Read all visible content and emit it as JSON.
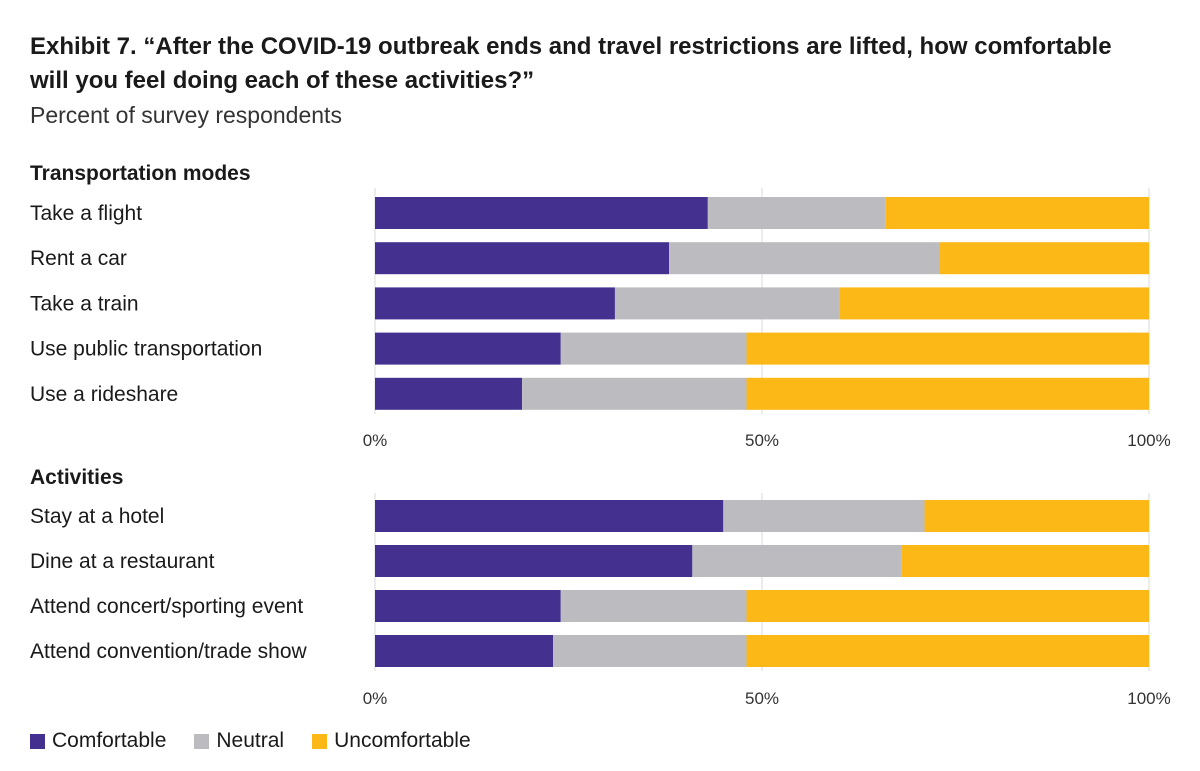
{
  "title": "Exhibit 7. “After the COVID-19 outbreak ends and travel restrictions are lifted, how comfortable will you feel doing each of these activities?”",
  "subtitle": "Percent of survey respondents",
  "colors": {
    "comfortable": "#44318f",
    "neutral": "#bcbcc0",
    "uncomfortable": "#fbb817",
    "grid": "#d9d9d9"
  },
  "legend": [
    {
      "label": "Comfortable",
      "key": "comfortable"
    },
    {
      "label": "Neutral",
      "key": "neutral"
    },
    {
      "label": "Uncomfortable",
      "key": "uncomfortable"
    }
  ],
  "chart_data": [
    {
      "type": "bar",
      "stacked": true,
      "orientation": "horizontal",
      "title": "Transportation modes",
      "categories": [
        "Take a flight",
        "Rent a car",
        "Take a train",
        "Use public transportation",
        "Use a rideshare"
      ],
      "series": [
        {
          "name": "Comfortable",
          "values": [
            43,
            38,
            31,
            24,
            19
          ]
        },
        {
          "name": "Neutral",
          "values": [
            23,
            35,
            29,
            24,
            29
          ]
        },
        {
          "name": "Uncomfortable",
          "values": [
            34,
            27,
            40,
            52,
            52
          ]
        }
      ],
      "xlim": [
        0,
        100
      ],
      "xticks": [
        "0%",
        "50%",
        "100%"
      ],
      "grid": true
    },
    {
      "type": "bar",
      "stacked": true,
      "orientation": "horizontal",
      "title": "Activities",
      "categories": [
        "Stay at a hotel",
        "Dine at a restaurant",
        "Attend concert/sporting event",
        "Attend convention/trade show"
      ],
      "series": [
        {
          "name": "Comfortable",
          "values": [
            45,
            41,
            24,
            23
          ]
        },
        {
          "name": "Neutral",
          "values": [
            26,
            27,
            24,
            25
          ]
        },
        {
          "name": "Uncomfortable",
          "values": [
            29,
            32,
            52,
            52
          ]
        }
      ],
      "xlim": [
        0,
        100
      ],
      "xticks": [
        "0%",
        "50%",
        "100%"
      ],
      "grid": true
    }
  ]
}
